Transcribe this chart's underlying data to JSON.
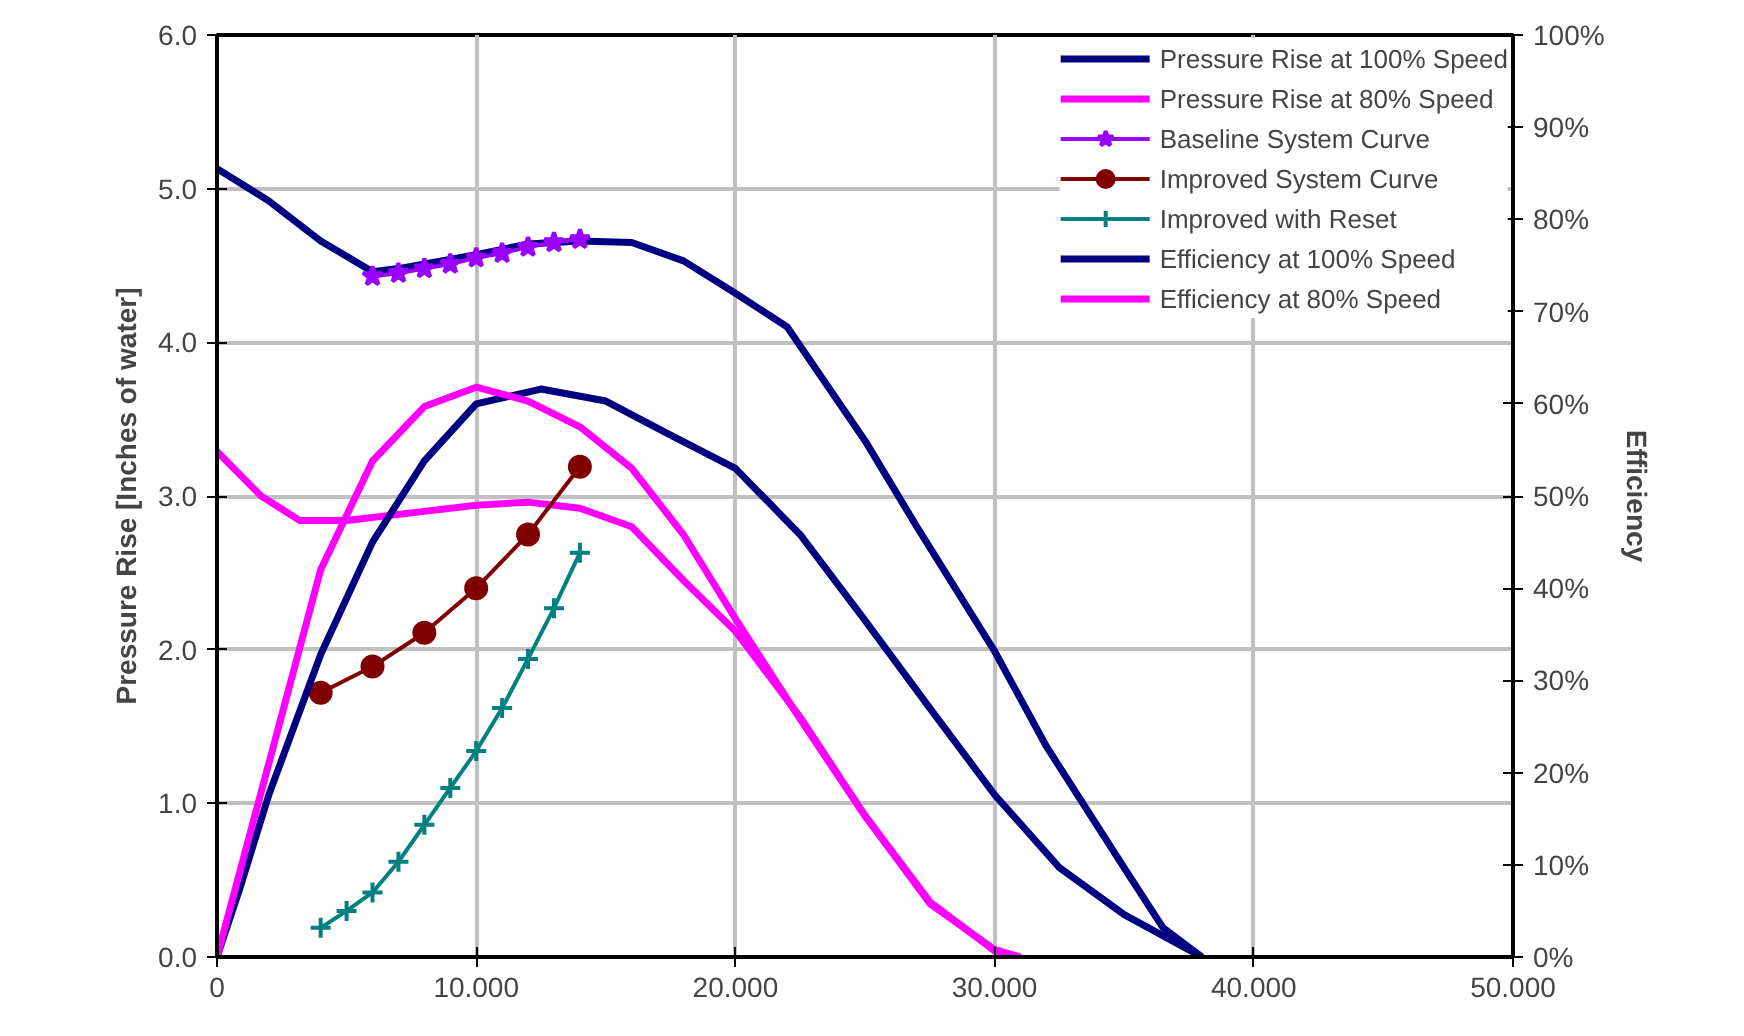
{
  "chart_data": {
    "type": "line",
    "ylabel": "Pressure Rise [Inches of water]",
    "y2label": "Efficiency",
    "xlim": [
      0,
      50
    ],
    "xticks": [
      0,
      {
        "value": 10,
        "label": "10.000"
      },
      {
        "value": 20,
        "label": "20.000"
      },
      {
        "value": 30,
        "label": "30.000"
      },
      {
        "value": 40,
        "label": "40.000"
      },
      {
        "value": 50,
        "label": "50.000"
      }
    ],
    "ylim": [
      0,
      6
    ],
    "yticks": [
      {
        "value": 0,
        "label": "0.0"
      },
      {
        "value": 1,
        "label": "1.0"
      },
      {
        "value": 2,
        "label": "2.0"
      },
      {
        "value": 3,
        "label": "3.0"
      },
      {
        "value": 4,
        "label": "4.0"
      },
      {
        "value": 5,
        "label": "5.0"
      },
      {
        "value": 6,
        "label": "6.0"
      }
    ],
    "y2lim": [
      0,
      100
    ],
    "y2ticks": [
      {
        "value": 0,
        "label": "0%"
      },
      {
        "value": 10,
        "label": "10%"
      },
      {
        "value": 20,
        "label": "20%"
      },
      {
        "value": 30,
        "label": "30%"
      },
      {
        "value": 40,
        "label": "40%"
      },
      {
        "value": 50,
        "label": "50%"
      },
      {
        "value": 60,
        "label": "60%"
      },
      {
        "value": 70,
        "label": "70%"
      },
      {
        "value": 80,
        "label": "80%"
      },
      {
        "value": 90,
        "label": "90%"
      },
      {
        "value": 100,
        "label": "100%"
      }
    ],
    "grid": true,
    "legend": "top right",
    "series": [
      {
        "name": "Pressure Rise at 100% Speed",
        "color": "#000080",
        "marker": "none",
        "x": [
          0,
          2,
          4,
          6,
          7,
          10,
          12,
          14,
          16,
          18,
          20,
          22,
          25,
          27,
          30,
          32,
          35,
          36.5,
          38
        ],
        "values": [
          5.13,
          4.92,
          4.66,
          4.46,
          4.48,
          4.57,
          4.64,
          4.66,
          4.65,
          4.53,
          4.32,
          4.1,
          3.36,
          2.8,
          1.99,
          1.37,
          0.58,
          0.19,
          0
        ]
      },
      {
        "name": "Pressure Rise at 80% Speed",
        "color": "#ff00ff",
        "marker": "none",
        "x": [
          0,
          1.7,
          3.2,
          5,
          8,
          10,
          12,
          14,
          16,
          18,
          20,
          22.5,
          25,
          27.5,
          30,
          30.8
        ],
        "values": [
          3.29,
          3.0,
          2.84,
          2.84,
          2.9,
          2.94,
          2.96,
          2.92,
          2.8,
          2.45,
          2.12,
          1.56,
          0.92,
          0.36,
          0.04,
          0
        ]
      },
      {
        "name": "Baseline System Curve",
        "color": "#9900ff",
        "marker": "star",
        "x": [
          6,
          7,
          8,
          9,
          10,
          11,
          12,
          13,
          14
        ],
        "values": [
          4.43,
          4.45,
          4.48,
          4.51,
          4.55,
          4.58,
          4.62,
          4.65,
          4.67
        ]
      },
      {
        "name": "Improved System Curve",
        "color": "#800000",
        "marker": "circle",
        "x": [
          4,
          6,
          8,
          10,
          12,
          14
        ],
        "values": [
          1.72,
          1.89,
          2.11,
          2.4,
          2.75,
          3.19
        ]
      },
      {
        "name": "Improved with Reset",
        "color": "#008080",
        "marker": "cross",
        "x": [
          4,
          5,
          6,
          7,
          8,
          9,
          10,
          11,
          12,
          13,
          14
        ],
        "values": [
          0.19,
          0.3,
          0.42,
          0.62,
          0.86,
          1.1,
          1.34,
          1.62,
          1.94,
          2.27,
          2.63
        ]
      },
      {
        "name": "Efficiency at 100% Speed",
        "color": "#000080",
        "marker": "none",
        "axis": "y2",
        "x": [
          0,
          0.9,
          2,
          4,
          6,
          8,
          10,
          12.5,
          15,
          17.5,
          20,
          22.5,
          25,
          27.5,
          30,
          32.5,
          35,
          38
        ],
        "values": [
          0,
          7.6,
          17.6,
          32.8,
          45,
          53.8,
          60,
          61.6,
          60.3,
          56.6,
          53,
          45.8,
          36.5,
          27,
          17.6,
          9.7,
          4.6,
          0
        ]
      },
      {
        "name": "Efficiency at 80% Speed",
        "color": "#ff00ff",
        "marker": "none",
        "axis": "y2",
        "x": [
          0,
          2,
          4,
          6,
          8,
          10,
          12,
          14,
          16,
          18,
          20,
          22.5,
          25,
          27.5,
          30,
          31
        ],
        "values": [
          0,
          21,
          42,
          53.8,
          59.7,
          61.8,
          60.3,
          57.5,
          53,
          45.8,
          36.7,
          25.8,
          15.3,
          5.8,
          0.8,
          0
        ]
      }
    ]
  }
}
